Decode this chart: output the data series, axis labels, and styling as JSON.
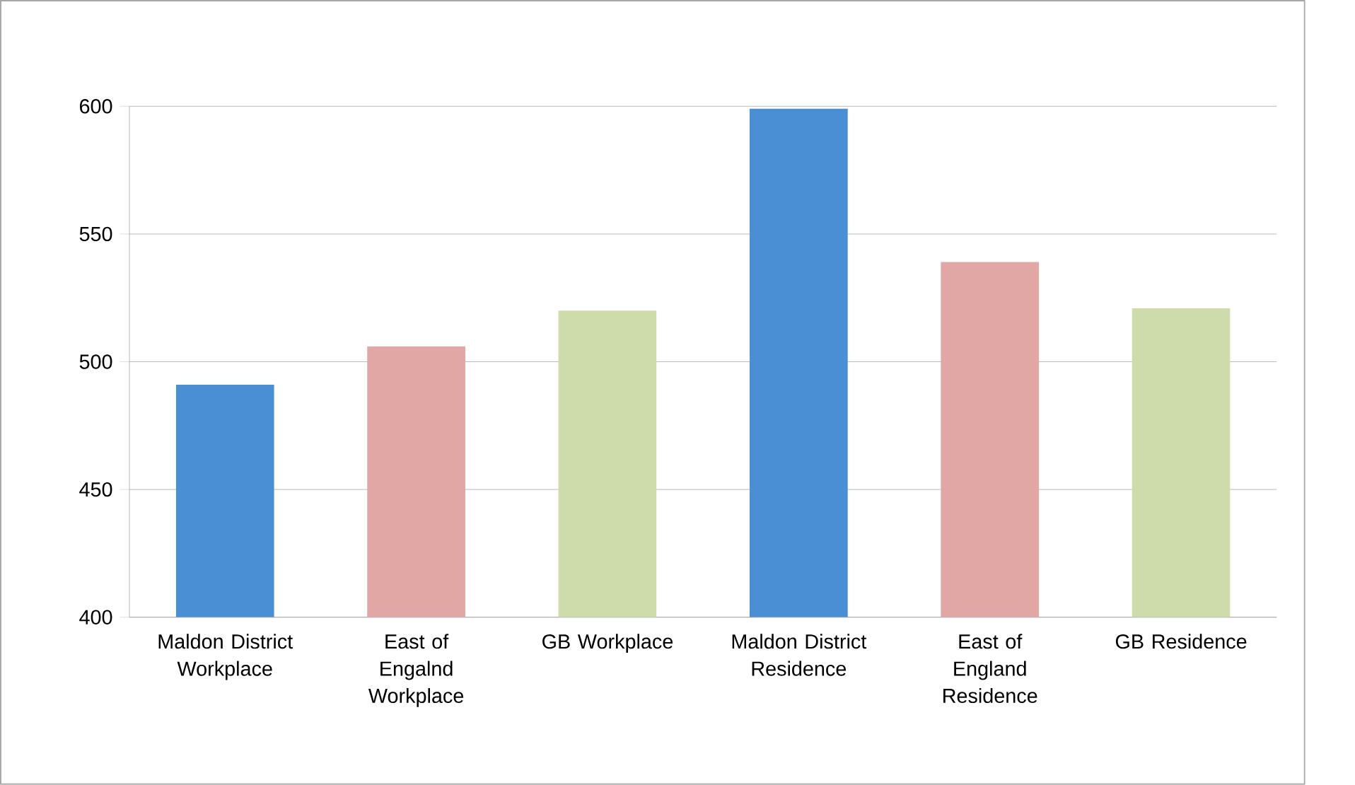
{
  "chart_data": {
    "type": "bar",
    "categories": [
      "Maldon District Workplace",
      "East of Engalnd Workplace",
      "GB Workplace",
      "Maldon District Residence",
      "East of England Residence",
      "GB Residence"
    ],
    "values": [
      491,
      506,
      520,
      599,
      539,
      521
    ],
    "colors": [
      "#4a8fd3",
      "#e0a7a5",
      "#cddcaa",
      "#4a8fd3",
      "#e0a7a5",
      "#cddcaa"
    ],
    "ylim": [
      400,
      600
    ],
    "yticks": [
      400,
      450,
      500,
      550,
      600
    ],
    "grid": "y"
  }
}
